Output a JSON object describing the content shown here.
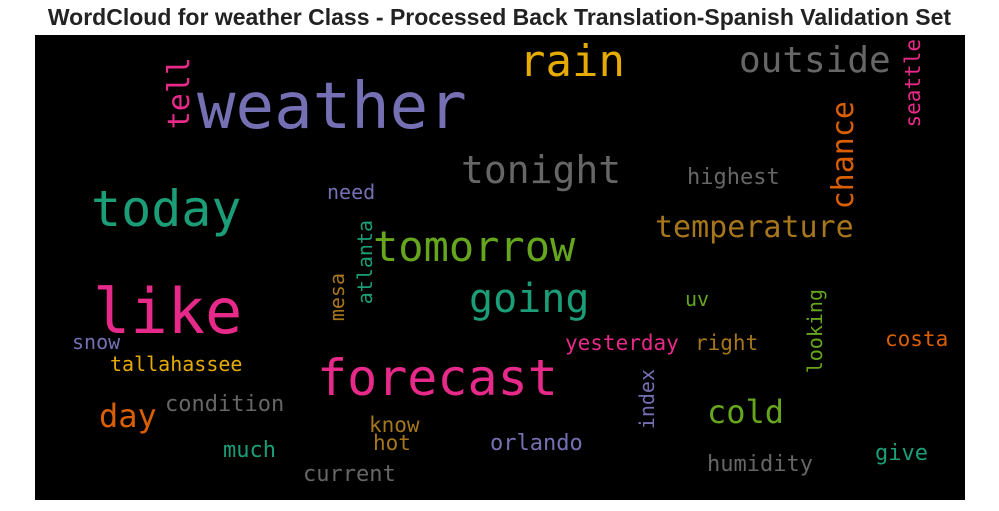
{
  "title": "WordCloud for weather Class - Processed Back Translation-Spanish Validation Set",
  "background_color": "#000000",
  "words": {
    "weather": {
      "text": "weather",
      "color": "#7570b3",
      "orientation": "horizontal"
    },
    "rain": {
      "text": "rain",
      "color": "#e6ab02",
      "orientation": "horizontal"
    },
    "outside": {
      "text": "outside",
      "color": "#666666",
      "orientation": "horizontal"
    },
    "seattle": {
      "text": "seattle",
      "color": "#e7298a",
      "orientation": "vertical"
    },
    "tell": {
      "text": "tell",
      "color": "#e7298a",
      "orientation": "vertical"
    },
    "chance": {
      "text": "chance",
      "color": "#d95f02",
      "orientation": "vertical"
    },
    "tonight": {
      "text": "tonight",
      "color": "#666666",
      "orientation": "horizontal"
    },
    "highest": {
      "text": "highest",
      "color": "#666666",
      "orientation": "horizontal"
    },
    "today": {
      "text": "today",
      "color": "#1b9e77",
      "orientation": "horizontal"
    },
    "need": {
      "text": "need",
      "color": "#7570b3",
      "orientation": "horizontal"
    },
    "temperature": {
      "text": "temperature",
      "color": "#a6761d",
      "orientation": "horizontal"
    },
    "tomorrow": {
      "text": "tomorrow",
      "color": "#66a61e",
      "orientation": "horizontal"
    },
    "atlanta": {
      "text": "atlanta",
      "color": "#1b9e77",
      "orientation": "vertical"
    },
    "mesa": {
      "text": "mesa",
      "color": "#a6761d",
      "orientation": "vertical"
    },
    "like": {
      "text": "like",
      "color": "#e7298a",
      "orientation": "horizontal"
    },
    "going": {
      "text": "going",
      "color": "#1b9e77",
      "orientation": "horizontal"
    },
    "uv": {
      "text": "uv",
      "color": "#66a61e",
      "orientation": "horizontal"
    },
    "looking": {
      "text": "looking",
      "color": "#66a61e",
      "orientation": "vertical"
    },
    "snow": {
      "text": "snow",
      "color": "#7570b3",
      "orientation": "horizontal"
    },
    "tallahassee": {
      "text": "tallahassee",
      "color": "#e6ab02",
      "orientation": "horizontal"
    },
    "yesterday": {
      "text": "yesterday",
      "color": "#e7298a",
      "orientation": "horizontal"
    },
    "right": {
      "text": "right",
      "color": "#a6761d",
      "orientation": "horizontal"
    },
    "costa": {
      "text": "costa",
      "color": "#d95f02",
      "orientation": "horizontal"
    },
    "forecast": {
      "text": "forecast",
      "color": "#e7298a",
      "orientation": "horizontal"
    },
    "index": {
      "text": "index",
      "color": "#7570b3",
      "orientation": "vertical"
    },
    "day": {
      "text": "day",
      "color": "#d95f02",
      "orientation": "horizontal"
    },
    "condition": {
      "text": "condition",
      "color": "#666666",
      "orientation": "horizontal"
    },
    "cold": {
      "text": "cold",
      "color": "#66a61e",
      "orientation": "horizontal"
    },
    "know": {
      "text": "know",
      "color": "#a6761d",
      "orientation": "horizontal"
    },
    "hot": {
      "text": "hot",
      "color": "#a6761d",
      "orientation": "horizontal"
    },
    "much": {
      "text": "much",
      "color": "#1b9e77",
      "orientation": "horizontal"
    },
    "orlando": {
      "text": "orlando",
      "color": "#7570b3",
      "orientation": "horizontal"
    },
    "give": {
      "text": "give",
      "color": "#1b9e77",
      "orientation": "horizontal"
    },
    "humidity": {
      "text": "humidity",
      "color": "#666666",
      "orientation": "horizontal"
    },
    "current": {
      "text": "current",
      "color": "#666666",
      "orientation": "horizontal"
    }
  }
}
